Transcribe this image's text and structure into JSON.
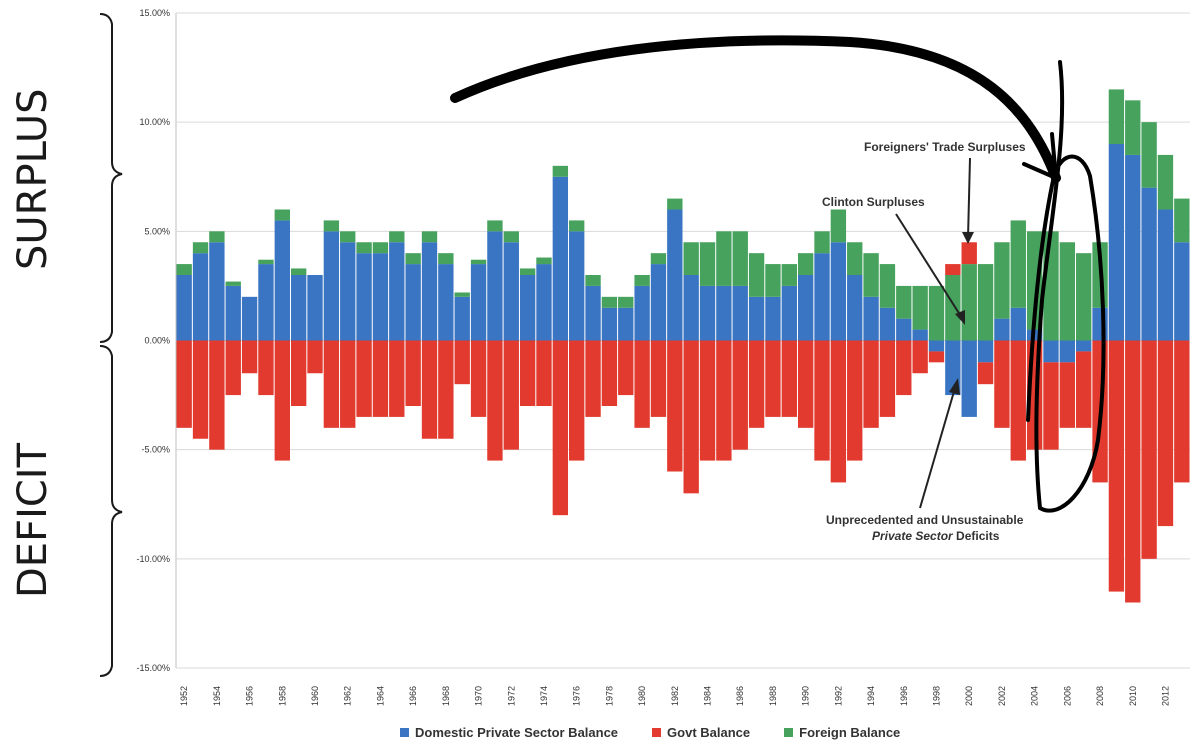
{
  "side_labels": {
    "top": "SURPLUS",
    "bottom": "DEFICIT"
  },
  "annotations": {
    "foreign": "Foreigners' Trade Surpluses",
    "clinton": "Clinton Surpluses",
    "private_line1": "Unprecedented and Unsustainable",
    "private_line2_italic": "Private Sector",
    "private_line2_rest": " Deficits"
  },
  "colors": {
    "domestic": "#3a75c4",
    "govt": "#e23a2e",
    "foreign": "#46a25c",
    "grid": "#d9d9d9",
    "ink": "#000000"
  },
  "chart_data": {
    "type": "bar",
    "stacked": true,
    "title": "",
    "xlabel": "",
    "ylabel": "",
    "ylim": [
      -15,
      15
    ],
    "y_ticks": [
      "15.00%",
      "10.00%",
      "5.00%",
      "0.00%",
      "-5.00%",
      "-10.00%",
      "-15.00%"
    ],
    "y_tick_values": [
      15,
      10,
      5,
      0,
      -5,
      -10,
      -15
    ],
    "x_tick_labels": [
      "1952",
      "1954",
      "1956",
      "1958",
      "1960",
      "1962",
      "1964",
      "1966",
      "1968",
      "1970",
      "1972",
      "1974",
      "1976",
      "1978",
      "1980",
      "1982",
      "1984",
      "1986",
      "1988",
      "1990",
      "1992",
      "1994",
      "1996",
      "1998",
      "2000",
      "2002",
      "2004",
      "2006",
      "2008",
      "2010",
      "2012"
    ],
    "years": [
      1952,
      1953,
      1954,
      1955,
      1956,
      1957,
      1958,
      1959,
      1960,
      1961,
      1962,
      1963,
      1964,
      1965,
      1966,
      1967,
      1968,
      1969,
      1970,
      1971,
      1972,
      1973,
      1974,
      1975,
      1976,
      1977,
      1978,
      1979,
      1980,
      1981,
      1982,
      1983,
      1984,
      1985,
      1986,
      1987,
      1988,
      1989,
      1990,
      1991,
      1992,
      1993,
      1994,
      1995,
      1996,
      1997,
      1998,
      1999,
      2000,
      2001,
      2002,
      2003,
      2004,
      2005,
      2006,
      2007,
      2008,
      2009,
      2010,
      2011,
      2012,
      2013
    ],
    "legend": [
      "Domestic Private Sector Balance",
      "Govt Balance",
      "Foreign Balance"
    ],
    "series": [
      {
        "name": "Domestic Private Sector Balance",
        "values": [
          3.0,
          4.0,
          4.5,
          2.5,
          2.0,
          3.5,
          5.5,
          3.0,
          3.0,
          5.0,
          4.5,
          4.0,
          4.0,
          4.5,
          3.5,
          4.5,
          3.5,
          2.0,
          3.5,
          5.0,
          4.5,
          3.0,
          3.5,
          7.5,
          5.0,
          2.5,
          1.5,
          1.5,
          2.5,
          3.5,
          6.0,
          3.0,
          2.5,
          2.5,
          2.5,
          2.0,
          2.0,
          2.5,
          3.0,
          4.0,
          4.5,
          3.0,
          2.0,
          1.5,
          1.0,
          0.5,
          -0.5,
          -2.5,
          -3.5,
          -1.0,
          1.0,
          1.5,
          0.5,
          -1.0,
          -1.0,
          -0.5,
          1.5,
          9.0,
          8.5,
          7.0,
          6.0,
          4.5
        ]
      },
      {
        "name": "Govt Balance",
        "values": [
          -4.0,
          -4.5,
          -5.0,
          -2.5,
          -1.5,
          -2.5,
          -5.5,
          -3.0,
          -1.5,
          -4.0,
          -4.0,
          -3.5,
          -3.5,
          -3.5,
          -3.0,
          -4.5,
          -4.5,
          -2.0,
          -3.5,
          -5.5,
          -5.0,
          -3.0,
          -3.0,
          -8.0,
          -5.5,
          -3.5,
          -3.0,
          -2.5,
          -4.0,
          -3.5,
          -6.0,
          -7.0,
          -5.5,
          -5.5,
          -5.0,
          -4.0,
          -3.5,
          -3.5,
          -4.0,
          -5.5,
          -6.5,
          -5.5,
          -4.0,
          -3.5,
          -2.5,
          -1.5,
          -0.5,
          0.5,
          1.0,
          -1.0,
          -4.0,
          -5.5,
          -5.0,
          -4.0,
          -3.0,
          -3.5,
          -6.5,
          -11.5,
          -12.0,
          -10.0,
          -8.5,
          -6.5
        ]
      },
      {
        "name": "Foreign Balance",
        "values": [
          0.5,
          0.5,
          0.5,
          0.2,
          0.0,
          0.2,
          0.5,
          0.3,
          0.0,
          0.5,
          0.5,
          0.5,
          0.5,
          0.5,
          0.5,
          0.5,
          0.5,
          0.2,
          0.2,
          0.5,
          0.5,
          0.3,
          0.3,
          0.5,
          0.5,
          0.5,
          0.5,
          0.5,
          0.5,
          0.5,
          0.5,
          1.5,
          2.0,
          2.5,
          2.5,
          2.0,
          1.5,
          1.0,
          1.0,
          1.0,
          1.5,
          1.5,
          2.0,
          2.0,
          1.5,
          2.0,
          2.5,
          3.0,
          3.5,
          3.5,
          3.5,
          4.0,
          4.5,
          5.0,
          4.5,
          4.0,
          3.0,
          2.5,
          2.5,
          3.0,
          2.5,
          2.0
        ]
      }
    ]
  }
}
